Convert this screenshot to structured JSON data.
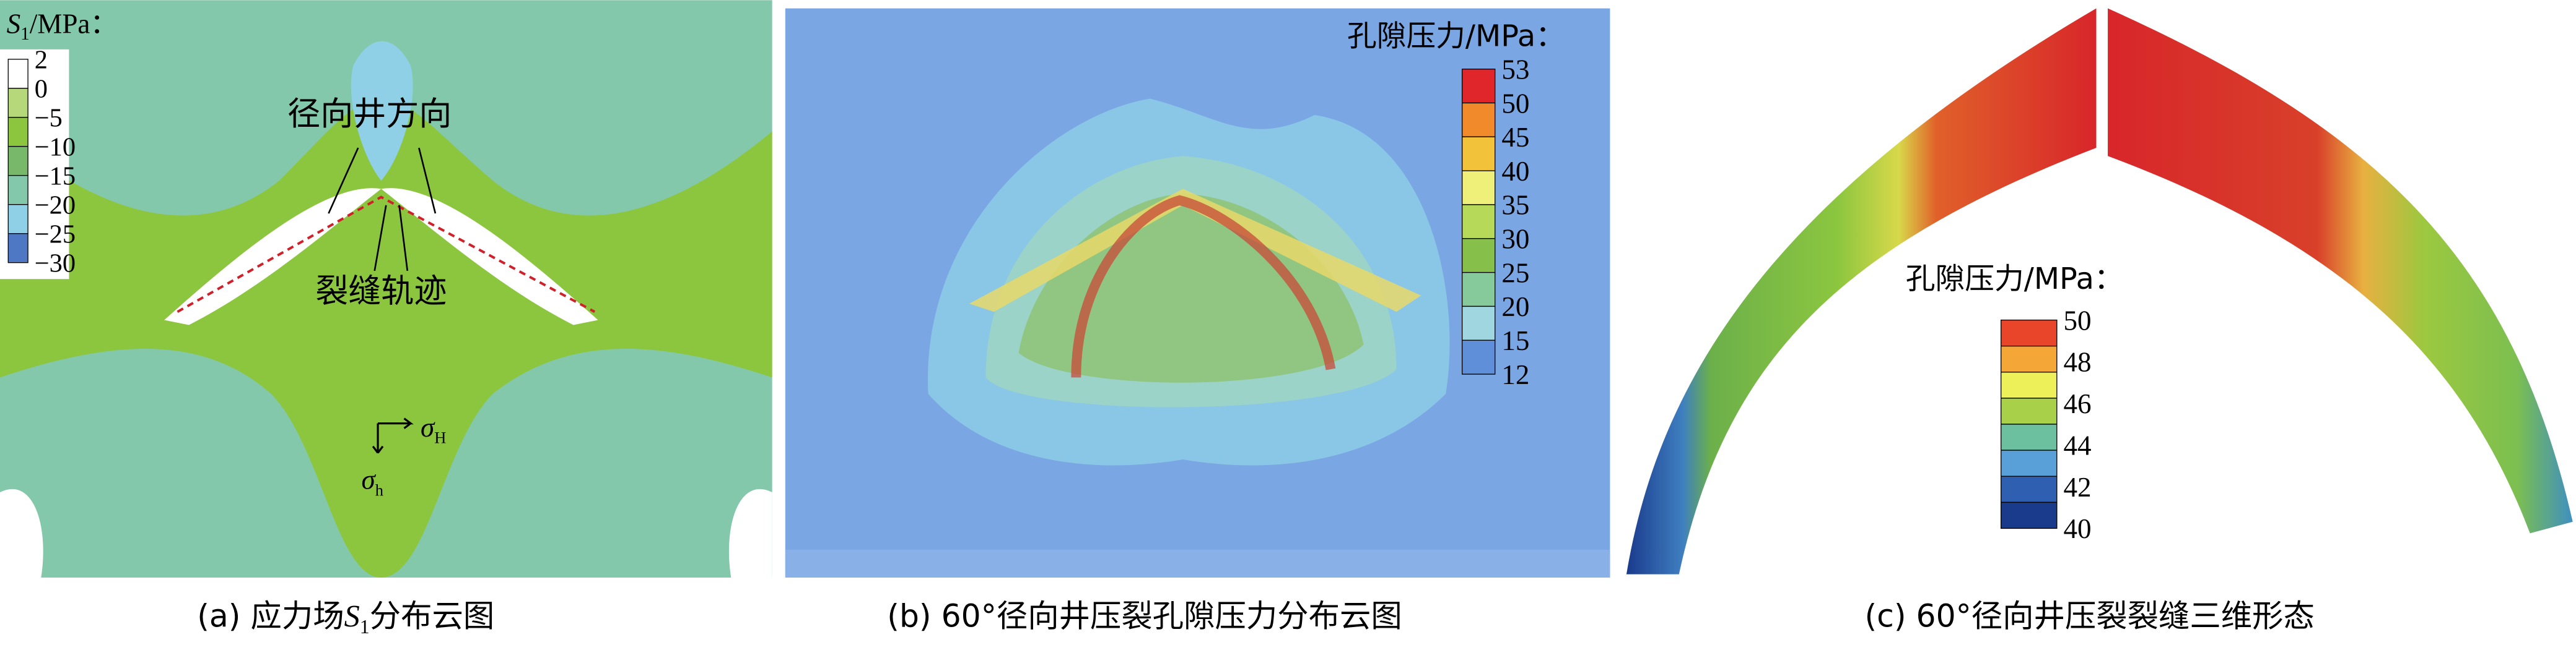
{
  "panel_a": {
    "caption": {
      "prefix": "(a) 应力场",
      "symbol": "S",
      "subscript": "1",
      "suffix": "分布云图"
    },
    "legend": {
      "symbol": "S",
      "subscript": "1",
      "unit": "/MPa：",
      "ticks": [
        "2",
        "0",
        "−5",
        "−10",
        "−15",
        "−20",
        "−25",
        "−30"
      ],
      "colors": [
        "#ffffff",
        "#b6d77a",
        "#8cc63f",
        "#78b86a",
        "#84c8ac",
        "#8fd0e6",
        "#4f78c4"
      ]
    },
    "annotations": {
      "well_direction": "径向井方向",
      "fracture_track": "裂缝轨迹",
      "sigma_H": {
        "symbol": "σ",
        "subscript": "H"
      },
      "sigma_h": {
        "symbol": "σ",
        "subscript": "h"
      }
    }
  },
  "panel_b": {
    "caption": "(b) 60°径向井压裂孔隙压力分布云图",
    "legend": {
      "title": "孔隙压力/MPa：",
      "ticks": [
        "53",
        "50",
        "45",
        "40",
        "35",
        "30",
        "25",
        "20",
        "15",
        "12"
      ],
      "colors": [
        "#e0262b",
        "#f08a2a",
        "#f2c23a",
        "#eef07a",
        "#b7d95a",
        "#86c04a",
        "#86c99a",
        "#9fd6e0",
        "#5f8fd8"
      ]
    }
  },
  "panel_c": {
    "caption": "(c) 60°径向井压裂裂缝三维形态",
    "legend": {
      "title": "孔隙压力/MPa：",
      "ticks": [
        "50",
        "48",
        "46",
        "44",
        "42",
        "40"
      ],
      "colors": [
        "#e8452a",
        "#f4a637",
        "#eef05a",
        "#a8d048",
        "#6cc0a0",
        "#5aa0d8",
        "#2f5fb0",
        "#1a3a8c"
      ]
    }
  }
}
